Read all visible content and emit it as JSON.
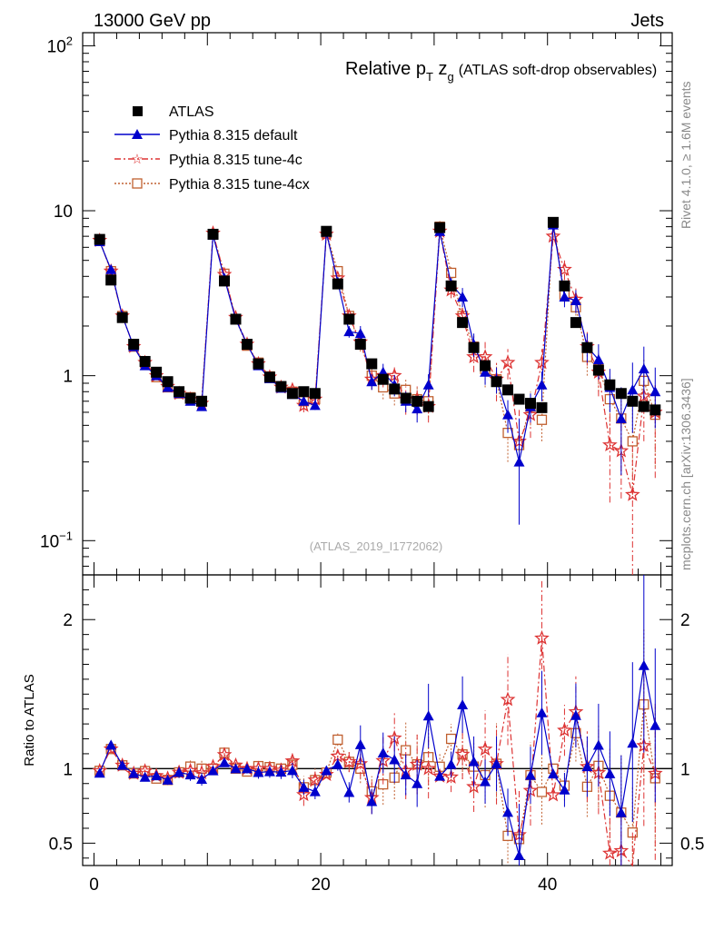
{
  "header": {
    "left": "13000 GeV pp",
    "right": "Jets"
  },
  "side": {
    "top": "Rivet 4.1.0, ≥ 1.6M events",
    "bottom": "mcplots.cern.ch [arXiv:1306.3436]"
  },
  "colors": {
    "atlas": "#000000",
    "default": "#0000cc",
    "tune4c": "#dd3333",
    "tune4cx": "#c06030"
  },
  "chart_data": [
    {
      "type": "scatter",
      "title_main": "Relative p",
      "title_sub_T": "T",
      "title_z": " z",
      "title_sub_g": "g",
      "title_suffix": "(ATLAS soft-drop observables)",
      "watermark": "(ATLAS_2019_I1772062)",
      "yscale": "log",
      "ylim": [
        0.062,
        120
      ],
      "xlim": [
        -1,
        51
      ],
      "y_ticks": [
        {
          "v": 100,
          "base": "10",
          "exp": "2"
        },
        {
          "v": 10,
          "base": "10",
          "exp": ""
        },
        {
          "v": 1,
          "base": "1",
          "exp": ""
        },
        {
          "v": 0.1,
          "base": "10",
          "exp": "−1"
        }
      ],
      "legend": [
        {
          "key": "atlas",
          "label": "ATLAS"
        },
        {
          "key": "default",
          "label": "Pythia 8.315 default"
        },
        {
          "key": "tune4c",
          "label": "Pythia 8.315 tune-4c"
        },
        {
          "key": "tune4cx",
          "label": "Pythia 8.315 tune-4cx"
        }
      ],
      "x": [
        0.5,
        1.5,
        2.5,
        3.5,
        4.5,
        5.5,
        6.5,
        7.5,
        8.5,
        9.5,
        10.5,
        11.5,
        12.5,
        13.5,
        14.5,
        15.5,
        16.5,
        17.5,
        18.5,
        19.5,
        20.5,
        21.5,
        22.5,
        23.5,
        24.5,
        25.5,
        26.5,
        27.5,
        28.5,
        29.5,
        30.5,
        31.5,
        32.5,
        33.5,
        34.5,
        35.5,
        36.5,
        37.5,
        38.5,
        39.5,
        40.5,
        41.5,
        42.5,
        43.5,
        44.5,
        45.5,
        46.5,
        47.5,
        48.5,
        49.5
      ],
      "series": [
        {
          "key": "atlas",
          "name": "ATLAS",
          "values": [
            6.7,
            3.8,
            2.25,
            1.55,
            1.22,
            1.05,
            0.92,
            0.8,
            0.73,
            0.7,
            7.2,
            3.75,
            2.2,
            1.55,
            1.18,
            0.98,
            0.86,
            0.78,
            0.8,
            0.78,
            7.5,
            3.6,
            2.2,
            1.55,
            1.18,
            0.95,
            0.83,
            0.73,
            0.7,
            0.65,
            7.9,
            3.5,
            2.1,
            1.48,
            1.15,
            0.92,
            0.82,
            0.72,
            0.68,
            0.64,
            8.5,
            3.5,
            2.1,
            1.48,
            1.08,
            0.88,
            0.78,
            0.7,
            0.65,
            0.62
          ]
        },
        {
          "key": "default",
          "name": "Pythia 8.315 default",
          "values": [
            6.5,
            4.4,
            2.3,
            1.5,
            1.15,
            1.0,
            0.85,
            0.78,
            0.7,
            0.65,
            7.1,
            3.9,
            2.2,
            1.55,
            1.15,
            0.96,
            0.84,
            0.77,
            0.7,
            0.66,
            7.4,
            3.7,
            1.85,
            1.8,
            0.92,
            1.05,
            0.88,
            0.7,
            0.63,
            0.88,
            7.5,
            3.6,
            3.0,
            1.55,
            1.05,
            0.95,
            0.58,
            0.3,
            0.65,
            0.88,
            8.2,
            3.0,
            2.85,
            1.5,
            1.25,
            0.85,
            0.55,
            0.82,
            1.1,
            0.8
          ],
          "lo": [
            6.4,
            4.3,
            2.25,
            1.46,
            1.12,
            0.97,
            0.82,
            0.75,
            0.67,
            0.62,
            7.0,
            3.85,
            2.15,
            1.5,
            1.1,
            0.92,
            0.8,
            0.73,
            0.66,
            0.62,
            7.3,
            3.55,
            1.7,
            1.6,
            0.82,
            0.92,
            0.75,
            0.6,
            0.52,
            0.74,
            7.3,
            3.3,
            2.6,
            1.3,
            0.88,
            0.78,
            0.45,
            0.125,
            0.52,
            0.7,
            8.0,
            2.6,
            2.4,
            1.2,
            0.95,
            0.6,
            0.25,
            0.45,
            0.72,
            0.48
          ],
          "hi": [
            6.6,
            4.5,
            2.35,
            1.54,
            1.18,
            1.03,
            0.88,
            0.81,
            0.73,
            0.68,
            7.2,
            3.95,
            2.25,
            1.6,
            1.2,
            1.0,
            0.88,
            0.81,
            0.74,
            0.7,
            7.5,
            3.85,
            2.0,
            2.0,
            1.02,
            1.18,
            1.01,
            0.8,
            0.74,
            1.02,
            7.7,
            3.9,
            3.4,
            1.8,
            1.22,
            1.12,
            0.71,
            0.55,
            0.78,
            1.06,
            8.4,
            3.4,
            3.3,
            1.8,
            1.55,
            1.1,
            0.85,
            1.2,
            1.5,
            1.12
          ]
        },
        {
          "key": "tune4c",
          "name": "Pythia 8.315 tune-4c",
          "values": [
            6.6,
            4.3,
            2.3,
            1.5,
            1.2,
            1.0,
            0.86,
            0.78,
            0.72,
            0.68,
            7.3,
            4.1,
            2.25,
            1.55,
            1.18,
            0.98,
            0.85,
            0.82,
            0.66,
            0.72,
            7.2,
            3.9,
            2.3,
            1.6,
            0.95,
            1.0,
            1.0,
            0.72,
            0.72,
            0.65,
            7.5,
            3.3,
            2.3,
            1.3,
            1.3,
            0.95,
            1.2,
            0.4,
            0.58,
            1.2,
            7.0,
            4.4,
            2.9,
            1.5,
            1.05,
            0.38,
            0.35,
            0.19,
            0.75,
            0.6
          ],
          "lo": [
            6.5,
            4.2,
            2.25,
            1.46,
            1.16,
            0.97,
            0.83,
            0.75,
            0.69,
            0.64,
            7.2,
            4.05,
            2.2,
            1.5,
            1.14,
            0.94,
            0.81,
            0.78,
            0.6,
            0.66,
            7.1,
            3.75,
            2.15,
            1.45,
            0.82,
            0.85,
            0.85,
            0.58,
            0.58,
            0.52,
            7.3,
            2.95,
            1.95,
            1.05,
            1.0,
            0.7,
            0.95,
            0.22,
            0.42,
            0.95,
            6.8,
            3.8,
            2.4,
            1.15,
            0.75,
            0.17,
            0.18,
            0.05,
            0.4,
            0.24
          ],
          "hi": [
            6.7,
            4.4,
            2.35,
            1.54,
            1.24,
            1.03,
            0.89,
            0.81,
            0.75,
            0.72,
            7.4,
            4.15,
            2.3,
            1.6,
            1.22,
            1.02,
            0.89,
            0.86,
            0.72,
            0.78,
            7.3,
            4.05,
            2.45,
            1.75,
            1.08,
            1.15,
            1.15,
            0.86,
            0.86,
            0.78,
            7.7,
            3.65,
            2.65,
            1.55,
            1.6,
            1.2,
            1.45,
            0.62,
            0.75,
            1.45,
            7.2,
            5.0,
            3.4,
            1.85,
            1.35,
            0.6,
            0.55,
            0.4,
            1.1,
            0.9
          ]
        },
        {
          "key": "tune4cx",
          "name": "Pythia 8.315 tune-4cx",
          "values": [
            6.6,
            4.3,
            2.3,
            1.5,
            1.2,
            0.98,
            0.85,
            0.78,
            0.74,
            0.7,
            7.2,
            4.15,
            2.2,
            1.52,
            1.2,
            0.99,
            0.86,
            0.8,
            0.7,
            0.72,
            7.3,
            4.3,
            2.3,
            1.55,
            1.0,
            0.85,
            0.78,
            0.82,
            0.72,
            0.7,
            8.0,
            4.2,
            2.3,
            1.5,
            1.1,
            0.95,
            0.45,
            0.38,
            0.65,
            0.54,
            8.5,
            3.1,
            2.6,
            1.3,
            1.1,
            0.72,
            0.55,
            0.4,
            0.93,
            0.58
          ],
          "lo": [
            6.5,
            4.2,
            2.25,
            1.46,
            1.16,
            0.95,
            0.82,
            0.75,
            0.71,
            0.66,
            7.1,
            4.1,
            2.15,
            1.48,
            1.16,
            0.95,
            0.82,
            0.76,
            0.64,
            0.66,
            7.2,
            4.15,
            2.15,
            1.4,
            0.88,
            0.72,
            0.66,
            0.68,
            0.58,
            0.56,
            7.8,
            3.85,
            1.95,
            1.25,
            0.85,
            0.7,
            0.3,
            0.22,
            0.5,
            0.4,
            8.2,
            2.75,
            2.2,
            1.0,
            0.8,
            0.45,
            0.25,
            0.18,
            0.6,
            0.28
          ],
          "hi": [
            6.7,
            4.4,
            2.35,
            1.54,
            1.24,
            1.01,
            0.88,
            0.81,
            0.77,
            0.74,
            7.3,
            4.2,
            2.25,
            1.56,
            1.24,
            1.03,
            0.9,
            0.84,
            0.76,
            0.78,
            7.4,
            4.45,
            2.45,
            1.7,
            1.12,
            0.98,
            0.9,
            0.96,
            0.86,
            0.84,
            8.7,
            4.55,
            2.65,
            1.75,
            1.35,
            1.2,
            0.62,
            0.55,
            0.8,
            0.7,
            8.8,
            3.45,
            3.0,
            1.6,
            1.4,
            1.0,
            0.85,
            0.62,
            1.26,
            0.88
          ]
        }
      ]
    },
    {
      "type": "scatter",
      "ylabel": "Ratio to ATLAS",
      "ylim": [
        0.35,
        2.3
      ],
      "xlim": [
        -1,
        51
      ],
      "y_ticks": [
        {
          "v": 2,
          "label": "2"
        },
        {
          "v": 1,
          "label": "1"
        },
        {
          "v": 0.5,
          "label": "0.5"
        }
      ],
      "x_ticks": [
        {
          "v": 0,
          "label": "0"
        },
        {
          "v": 20,
          "label": "20"
        },
        {
          "v": 40,
          "label": "40"
        }
      ]
    }
  ]
}
